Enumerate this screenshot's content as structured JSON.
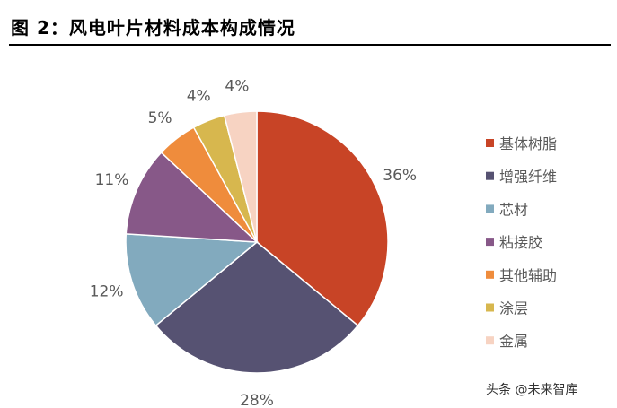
{
  "title": "图 2：风电叶片材料成本构成情况",
  "watermark": "头条 @未来智库",
  "chart_data": {
    "type": "pie",
    "title": "",
    "categories": [
      "基体树脂",
      "增强纤维",
      "芯材",
      "粘接胶",
      "其他辅助",
      "涂层",
      "金属"
    ],
    "values": [
      36,
      28,
      12,
      11,
      5,
      4,
      4
    ],
    "value_labels": [
      "36%",
      "28%",
      "12%",
      "11%",
      "5%",
      "4%",
      "4%"
    ],
    "colors": [
      "#c84426",
      "#565272",
      "#82aabe",
      "#875888",
      "#ef8c3c",
      "#d7b74e",
      "#f7d3c2"
    ],
    "legend": {
      "position": "right",
      "entries": [
        "基体树脂",
        "增强纤维",
        "芯材",
        "粘接胶",
        "其他辅助",
        "涂层",
        "金属"
      ]
    },
    "start_angle": "12 o'clock",
    "direction": "clockwise"
  }
}
